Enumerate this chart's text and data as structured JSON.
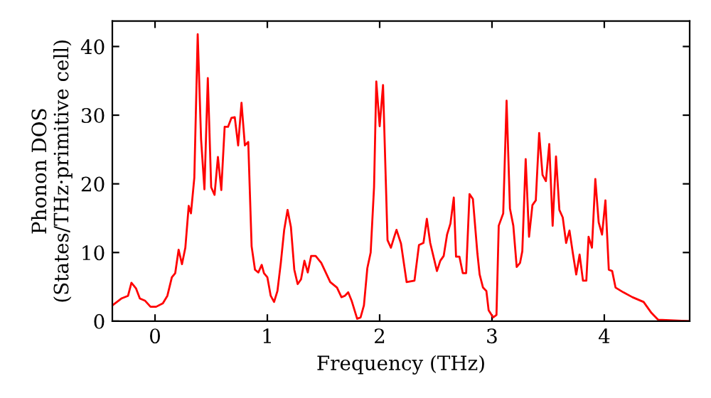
{
  "chart_data": {
    "type": "line",
    "xlabel": "Frequency (THz)",
    "ylabel": "Phonon DOS\n(States/THz·primitive cell)",
    "xlim": [
      -0.38,
      4.76
    ],
    "ylim": [
      0,
      43.7
    ],
    "xticks": [
      0,
      1,
      2,
      3,
      4
    ],
    "yticks": [
      0,
      10,
      20,
      30,
      40
    ],
    "grid": false,
    "legend": false,
    "series": [
      {
        "color": "#ff0000",
        "x": [
          -0.38,
          -0.3,
          -0.24,
          -0.21,
          -0.17,
          -0.135,
          -0.09,
          -0.04,
          0.01,
          0.07,
          0.11,
          0.15,
          0.18,
          0.21,
          0.24,
          0.27,
          0.3,
          0.32,
          0.35,
          0.38,
          0.41,
          0.44,
          0.47,
          0.5,
          0.53,
          0.56,
          0.59,
          0.62,
          0.65,
          0.68,
          0.71,
          0.74,
          0.77,
          0.8,
          0.83,
          0.86,
          0.89,
          0.92,
          0.95,
          0.97,
          1.0,
          1.03,
          1.06,
          1.09,
          1.12,
          1.15,
          1.18,
          1.21,
          1.24,
          1.27,
          1.3,
          1.33,
          1.36,
          1.39,
          1.43,
          1.48,
          1.52,
          1.56,
          1.62,
          1.66,
          1.69,
          1.72,
          1.75,
          1.8,
          1.83,
          1.86,
          1.89,
          1.92,
          1.95,
          1.97,
          2.0,
          2.03,
          2.07,
          2.1,
          2.13,
          2.15,
          2.19,
          2.24,
          2.31,
          2.35,
          2.39,
          2.42,
          2.45,
          2.51,
          2.54,
          2.57,
          2.6,
          2.63,
          2.66,
          2.68,
          2.71,
          2.74,
          2.77,
          2.8,
          2.83,
          2.87,
          2.89,
          2.92,
          2.95,
          2.97,
          3.01,
          3.04,
          3.06,
          3.1,
          3.13,
          3.16,
          3.19,
          3.22,
          3.25,
          3.27,
          3.3,
          3.33,
          3.36,
          3.39,
          3.42,
          3.45,
          3.48,
          3.51,
          3.54,
          3.57,
          3.6,
          3.63,
          3.66,
          3.69,
          3.72,
          3.75,
          3.78,
          3.81,
          3.84,
          3.86,
          3.89,
          3.92,
          3.95,
          3.98,
          4.01,
          4.04,
          4.07,
          4.1,
          4.17,
          4.25,
          4.35,
          4.42,
          4.48,
          4.76
        ],
        "values": [
          2.3,
          3.3,
          3.7,
          5.6,
          4.8,
          3.3,
          3.0,
          2.1,
          2.1,
          2.6,
          3.7,
          6.4,
          7.0,
          10.4,
          8.3,
          10.7,
          16.8,
          15.7,
          20.9,
          41.8,
          26.5,
          19.2,
          35.4,
          19.5,
          18.4,
          23.9,
          19.1,
          28.3,
          28.3,
          29.6,
          29.7,
          25.6,
          31.8,
          25.6,
          26.1,
          10.9,
          7.5,
          7.1,
          8.2,
          7.0,
          6.4,
          3.7,
          2.8,
          4.4,
          8.5,
          13.3,
          16.2,
          13.7,
          7.5,
          5.4,
          6.1,
          8.8,
          7.1,
          9.5,
          9.5,
          8.5,
          7.1,
          5.7,
          4.9,
          3.5,
          3.7,
          4.2,
          3.0,
          0.35,
          0.55,
          2.3,
          7.7,
          10.0,
          19.5,
          34.9,
          28.4,
          34.4,
          11.8,
          10.7,
          12.3,
          13.3,
          11.3,
          5.7,
          5.9,
          11.1,
          11.4,
          14.9,
          11.4,
          7.3,
          8.8,
          9.5,
          12.6,
          14.2,
          18.0,
          9.4,
          9.4,
          7.0,
          7.0,
          18.5,
          17.8,
          9.9,
          6.8,
          4.9,
          4.4,
          1.6,
          0.55,
          0.9,
          13.9,
          15.7,
          32.1,
          16.4,
          13.9,
          7.9,
          8.5,
          10.2,
          23.6,
          12.3,
          16.9,
          17.6,
          27.4,
          21.3,
          20.4,
          25.8,
          13.9,
          24.0,
          16.2,
          15.1,
          11.4,
          13.2,
          9.9,
          6.8,
          9.7,
          5.9,
          5.9,
          12.3,
          10.7,
          20.7,
          14.4,
          12.6,
          17.6,
          7.5,
          7.3,
          4.9,
          4.2,
          3.5,
          2.8,
          1.2,
          0.2,
          0.0
        ]
      }
    ]
  }
}
